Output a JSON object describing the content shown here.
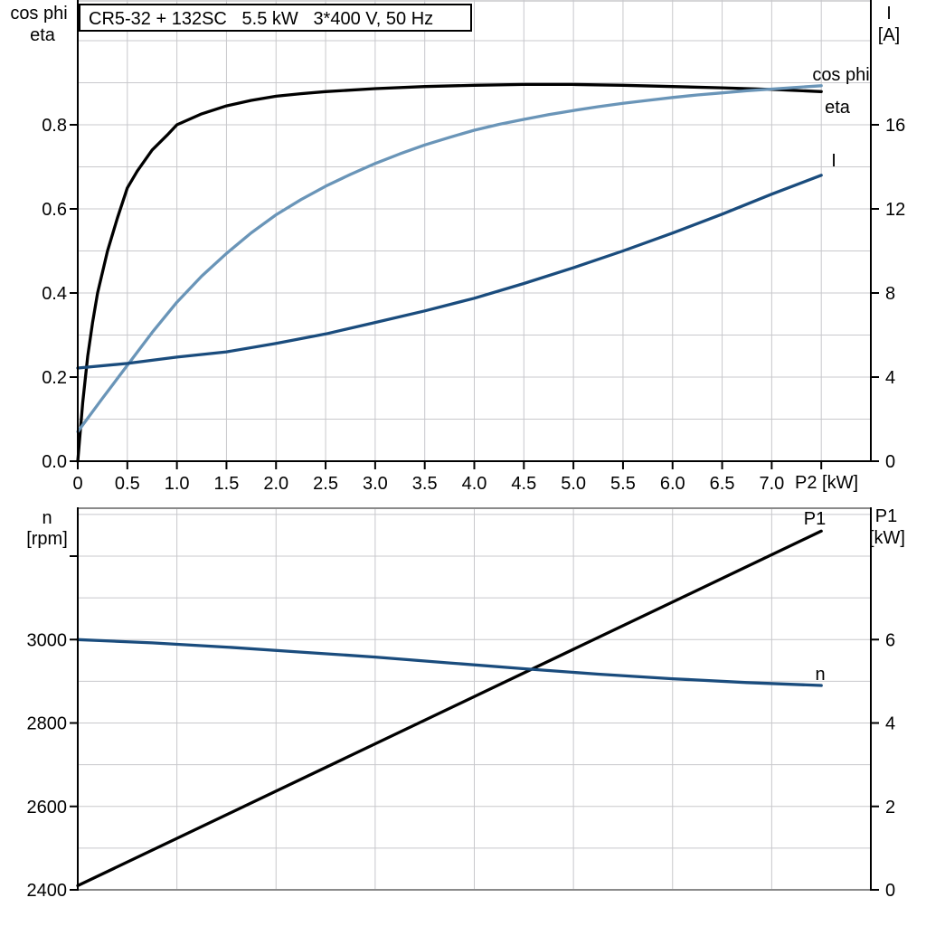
{
  "title_box": {
    "text": "CR5-32 + 132SC   5.5 kW   3*400 V, 50 Hz"
  },
  "colors": {
    "black": "#000000",
    "dark_blue": "#1a4c7d",
    "light_blue": "#6a95b8",
    "light_blue_label": "#7aa3c6",
    "grid": "#c8c8cc",
    "frame_gray": "#8a8a8a"
  },
  "chart_data": [
    {
      "id": "top",
      "type": "line",
      "title": "CR5-32 + 132SC 5.5 kW 3*400 V, 50 Hz",
      "x_axis": {
        "label": "P2 [kW]",
        "range": [
          0,
          8
        ],
        "grid_step": 0.5,
        "ticks": [
          {
            "v": 0,
            "label": "0"
          },
          {
            "v": 0.5,
            "label": "0.5"
          },
          {
            "v": 1,
            "label": "1.0"
          },
          {
            "v": 1.5,
            "label": "1.5"
          },
          {
            "v": 2,
            "label": "2.0"
          },
          {
            "v": 2.5,
            "label": "2.5"
          },
          {
            "v": 3,
            "label": "3.0"
          },
          {
            "v": 3.5,
            "label": "3.5"
          },
          {
            "v": 4,
            "label": "4.0"
          },
          {
            "v": 4.5,
            "label": "4.5"
          },
          {
            "v": 5,
            "label": "5.0"
          },
          {
            "v": 5.5,
            "label": "5.5"
          },
          {
            "v": 6,
            "label": "6.0"
          },
          {
            "v": 6.5,
            "label": "6.5"
          },
          {
            "v": 7,
            "label": "7.0"
          },
          {
            "v": 7.5,
            "label": ""
          }
        ]
      },
      "left_axis": {
        "title_lines": [
          "cos phi",
          "eta"
        ],
        "range": [
          0,
          1.097
        ],
        "grid_step": 0.1,
        "ticks": [
          {
            "v": 0,
            "label": "0.0"
          },
          {
            "v": 0.2,
            "label": "0.2"
          },
          {
            "v": 0.4,
            "label": "0.4"
          },
          {
            "v": 0.6,
            "label": "0.6"
          },
          {
            "v": 0.8,
            "label": "0.8"
          }
        ]
      },
      "right_axis": {
        "title_lines": [
          "I",
          "[A]"
        ],
        "range": [
          0,
          21.9
        ],
        "ticks": [
          {
            "v": 0,
            "label": "0"
          },
          {
            "v": 4,
            "label": "4"
          },
          {
            "v": 8,
            "label": "8"
          },
          {
            "v": 12,
            "label": "12"
          },
          {
            "v": 16,
            "label": "16"
          }
        ]
      },
      "series": [
        {
          "name": "eta",
          "axis": "left",
          "color": "#000000",
          "points": [
            [
              0,
              0
            ],
            [
              0.05,
              0.14
            ],
            [
              0.1,
              0.25
            ],
            [
              0.15,
              0.33
            ],
            [
              0.2,
              0.4
            ],
            [
              0.25,
              0.45
            ],
            [
              0.3,
              0.5
            ],
            [
              0.4,
              0.578
            ],
            [
              0.5,
              0.65
            ],
            [
              0.6,
              0.69
            ],
            [
              0.75,
              0.74
            ],
            [
              0.9,
              0.775
            ],
            [
              1.0,
              0.8
            ],
            [
              1.25,
              0.826
            ],
            [
              1.5,
              0.845
            ],
            [
              1.75,
              0.858
            ],
            [
              2.0,
              0.868
            ],
            [
              2.25,
              0.874
            ],
            [
              2.5,
              0.879
            ],
            [
              3.0,
              0.886
            ],
            [
              3.5,
              0.891
            ],
            [
              4.0,
              0.894
            ],
            [
              4.5,
              0.896
            ],
            [
              5.0,
              0.896
            ],
            [
              5.5,
              0.894
            ],
            [
              6.0,
              0.891
            ],
            [
              6.5,
              0.888
            ],
            [
              7.0,
              0.884
            ],
            [
              7.5,
              0.879
            ]
          ]
        },
        {
          "name": "cos phi",
          "axis": "left",
          "color": "#6a95b8",
          "points": [
            [
              0,
              0.07
            ],
            [
              0.25,
              0.15
            ],
            [
              0.5,
              0.228
            ],
            [
              0.75,
              0.306
            ],
            [
              1.0,
              0.378
            ],
            [
              1.25,
              0.44
            ],
            [
              1.5,
              0.494
            ],
            [
              1.75,
              0.543
            ],
            [
              2.0,
              0.586
            ],
            [
              2.25,
              0.622
            ],
            [
              2.5,
              0.654
            ],
            [
              2.75,
              0.682
            ],
            [
              3.0,
              0.708
            ],
            [
              3.25,
              0.731
            ],
            [
              3.5,
              0.752
            ],
            [
              3.75,
              0.77
            ],
            [
              4.0,
              0.787
            ],
            [
              4.25,
              0.801
            ],
            [
              4.5,
              0.813
            ],
            [
              4.75,
              0.824
            ],
            [
              5.0,
              0.834
            ],
            [
              5.25,
              0.843
            ],
            [
              5.5,
              0.851
            ],
            [
              5.75,
              0.858
            ],
            [
              6.0,
              0.865
            ],
            [
              6.25,
              0.871
            ],
            [
              6.5,
              0.876
            ],
            [
              6.75,
              0.881
            ],
            [
              7.0,
              0.885
            ],
            [
              7.25,
              0.889
            ],
            [
              7.5,
              0.893
            ]
          ]
        },
        {
          "name": "I",
          "axis": "right",
          "color": "#1a4c7d",
          "points": [
            [
              0,
              4.43
            ],
            [
              0.5,
              4.65
            ],
            [
              1.0,
              4.95
            ],
            [
              1.5,
              5.2
            ],
            [
              2.0,
              5.6
            ],
            [
              2.5,
              6.05
            ],
            [
              3.0,
              6.6
            ],
            [
              3.5,
              7.15
            ],
            [
              4.0,
              7.75
            ],
            [
              4.5,
              8.45
            ],
            [
              5.0,
              9.2
            ],
            [
              5.5,
              10.0
            ],
            [
              6.0,
              10.85
            ],
            [
              6.5,
              11.75
            ],
            [
              7.0,
              12.7
            ],
            [
              7.5,
              13.6
            ]
          ]
        }
      ]
    },
    {
      "id": "bottom",
      "type": "line",
      "x_axis": {
        "label": "",
        "range": [
          0,
          8
        ],
        "grid_step": 1,
        "ticks": []
      },
      "left_axis": {
        "title_lines": [
          "n",
          "[rpm]"
        ],
        "range": [
          2400,
          3315
        ],
        "grid_step": 100,
        "ticks": [
          {
            "v": 2400,
            "label": "2400"
          },
          {
            "v": 2600,
            "label": "2600"
          },
          {
            "v": 2800,
            "label": "2800"
          },
          {
            "v": 3000,
            "label": "3000"
          },
          {
            "v": 3200,
            "label": ""
          }
        ]
      },
      "right_axis": {
        "title_lines": [
          "P1",
          "[kW]"
        ],
        "range": [
          0,
          9.15
        ],
        "ticks": [
          {
            "v": 0,
            "label": "0"
          },
          {
            "v": 2,
            "label": "2"
          },
          {
            "v": 4,
            "label": "4"
          },
          {
            "v": 6,
            "label": "6"
          }
        ]
      },
      "series": [
        {
          "name": "P1",
          "axis": "right",
          "color": "#000000",
          "points": [
            [
              0,
              0.1
            ],
            [
              7.5,
              8.6
            ]
          ]
        },
        {
          "name": "n",
          "axis": "left",
          "color": "#1a4c7d",
          "points": [
            [
              0,
              3000
            ],
            [
              0.75,
              2992
            ],
            [
              1.5,
              2982
            ],
            [
              2.25,
              2970
            ],
            [
              3.0,
              2958
            ],
            [
              3.75,
              2944
            ],
            [
              4.5,
              2930
            ],
            [
              5.25,
              2917
            ],
            [
              6.0,
              2906
            ],
            [
              6.75,
              2897
            ],
            [
              7.5,
              2890
            ]
          ]
        }
      ]
    }
  ]
}
